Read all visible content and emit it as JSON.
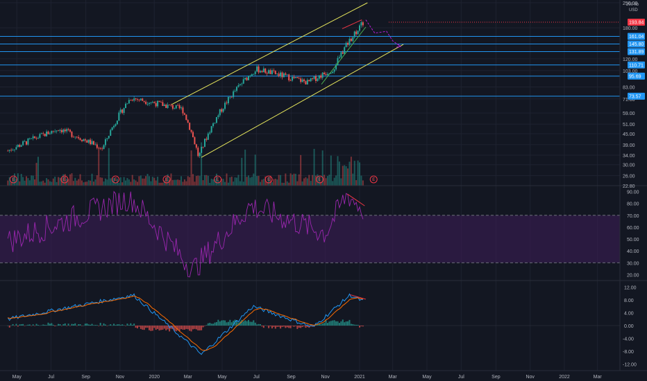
{
  "header": {
    "scale": "200 fib",
    "currency": "USD"
  },
  "colors": {
    "background": "#131722",
    "grid": "#1e2230",
    "up": "#26a69a",
    "down": "#ef5350",
    "channel": "#e6e65c",
    "hline": "#2196f3",
    "rsi": "#9c27b0",
    "rsi_band": "#3a1d55",
    "macd": "#2196f3",
    "signal": "#ff6d00",
    "last_price": "#f23645",
    "arrow": "#b71cd9",
    "green_line": "#4caf50",
    "red_line": "#f23645"
  },
  "price_axis": {
    "ticks": [
      "250.00",
      "180.00",
      "120.00",
      "103.00",
      "83.00",
      "71.00",
      "59.00",
      "51.00",
      "45.00",
      "39.00",
      "34.00",
      "30.00",
      "26.00",
      "22.80"
    ],
    "tick_values": [
      250,
      180,
      120,
      103,
      83,
      71,
      59,
      51,
      45,
      39,
      34,
      30,
      26,
      22.8
    ],
    "last_price": {
      "value": 193.84,
      "label": "193.84"
    },
    "levels": [
      {
        "value": 161.04,
        "label": "161.04"
      },
      {
        "value": 145.8,
        "label": "145.80"
      },
      {
        "value": 131.89,
        "label": "131.89"
      },
      {
        "value": 110.71,
        "label": "110.71"
      },
      {
        "value": 95.69,
        "label": "95.69"
      },
      {
        "value": 73.57,
        "label": "73.57"
      }
    ]
  },
  "time_axis": {
    "labels": [
      "May",
      "Jul",
      "Sep",
      "Nov",
      "2020",
      "Mar",
      "May",
      "Jul",
      "Sep",
      "Nov",
      "2021",
      "Mar",
      "May",
      "Jul",
      "Sep",
      "Nov",
      "2022",
      "Mar"
    ]
  },
  "earnings_marker": {
    "label": "E"
  },
  "chart_data": [
    {
      "type": "candlestick",
      "scale": "log",
      "x_range": [
        "2019-04-15",
        "2022-03-31"
      ],
      "y_range": [
        22.8,
        250
      ],
      "key_points": [
        {
          "date": "2019-04-15",
          "close": 36
        },
        {
          "date": "2019-07-15",
          "close": 48
        },
        {
          "date": "2019-10-01",
          "close": 37
        },
        {
          "date": "2019-11-20",
          "close": 72
        },
        {
          "date": "2020-02-20",
          "close": 62
        },
        {
          "date": "2020-03-20",
          "close": 33
        },
        {
          "date": "2020-06-30",
          "close": 105
        },
        {
          "date": "2020-10-01",
          "close": 88
        },
        {
          "date": "2020-11-15",
          "close": 105
        },
        {
          "date": "2021-01-08",
          "close": 193.84
        }
      ],
      "last_price": 193.84,
      "horizontal_levels": [
        161.04,
        145.8,
        131.89,
        110.71,
        95.69,
        73.57
      ],
      "earnings_dates": [
        "2019-04-25",
        "2019-07-25",
        "2019-10-24",
        "2020-01-23",
        "2020-04-23",
        "2020-07-23",
        "2020-10-22",
        "2021-01-26"
      ],
      "ascending_channel": {
        "upper": [
          [
            "2020-02-01",
            66
          ],
          [
            "2021-01-15",
            250
          ]
        ],
        "lower": [
          [
            "2020-03-25",
            33
          ],
          [
            "2021-03-20",
            145
          ]
        ]
      }
    },
    {
      "type": "bar",
      "name": "volume",
      "note": "volume histogram"
    },
    {
      "type": "line",
      "name": "RSI",
      "ylim": [
        20,
        90
      ],
      "ticks": [
        "90.00",
        "80.00",
        "70.00",
        "60.00",
        "50.00",
        "40.00",
        "30.00",
        "20.00"
      ],
      "tick_values": [
        90,
        80,
        70,
        60,
        50,
        40,
        30,
        20
      ],
      "overbought": 70,
      "oversold": 30,
      "key_points": [
        {
          "date": "2019-04-15",
          "value": 48
        },
        {
          "date": "2019-11-20",
          "value": 85
        },
        {
          "date": "2020-03-10",
          "value": 24
        },
        {
          "date": "2020-06-20",
          "value": 78
        },
        {
          "date": "2020-11-01",
          "value": 55
        },
        {
          "date": "2020-12-10",
          "value": 88
        },
        {
          "date": "2021-01-08",
          "value": 74
        }
      ]
    },
    {
      "type": "line",
      "name": "MACD",
      "ylim": [
        -12,
        12
      ],
      "ticks": [
        "12.00",
        "8.00",
        "4.00",
        "0.00",
        "-4.00",
        "-8.00",
        "-12.00"
      ],
      "tick_values": [
        12,
        8,
        4,
        0,
        -4,
        -8,
        -12
      ],
      "key_points": [
        {
          "date": "2019-04-15",
          "value": 2
        },
        {
          "date": "2019-11-25",
          "value": 9.5
        },
        {
          "date": "2020-03-25",
          "value": -9
        },
        {
          "date": "2020-06-25",
          "value": 6
        },
        {
          "date": "2020-10-10",
          "value": -0.5
        },
        {
          "date": "2020-12-15",
          "value": 9.5
        },
        {
          "date": "2021-01-08",
          "value": 7.5
        }
      ]
    }
  ]
}
